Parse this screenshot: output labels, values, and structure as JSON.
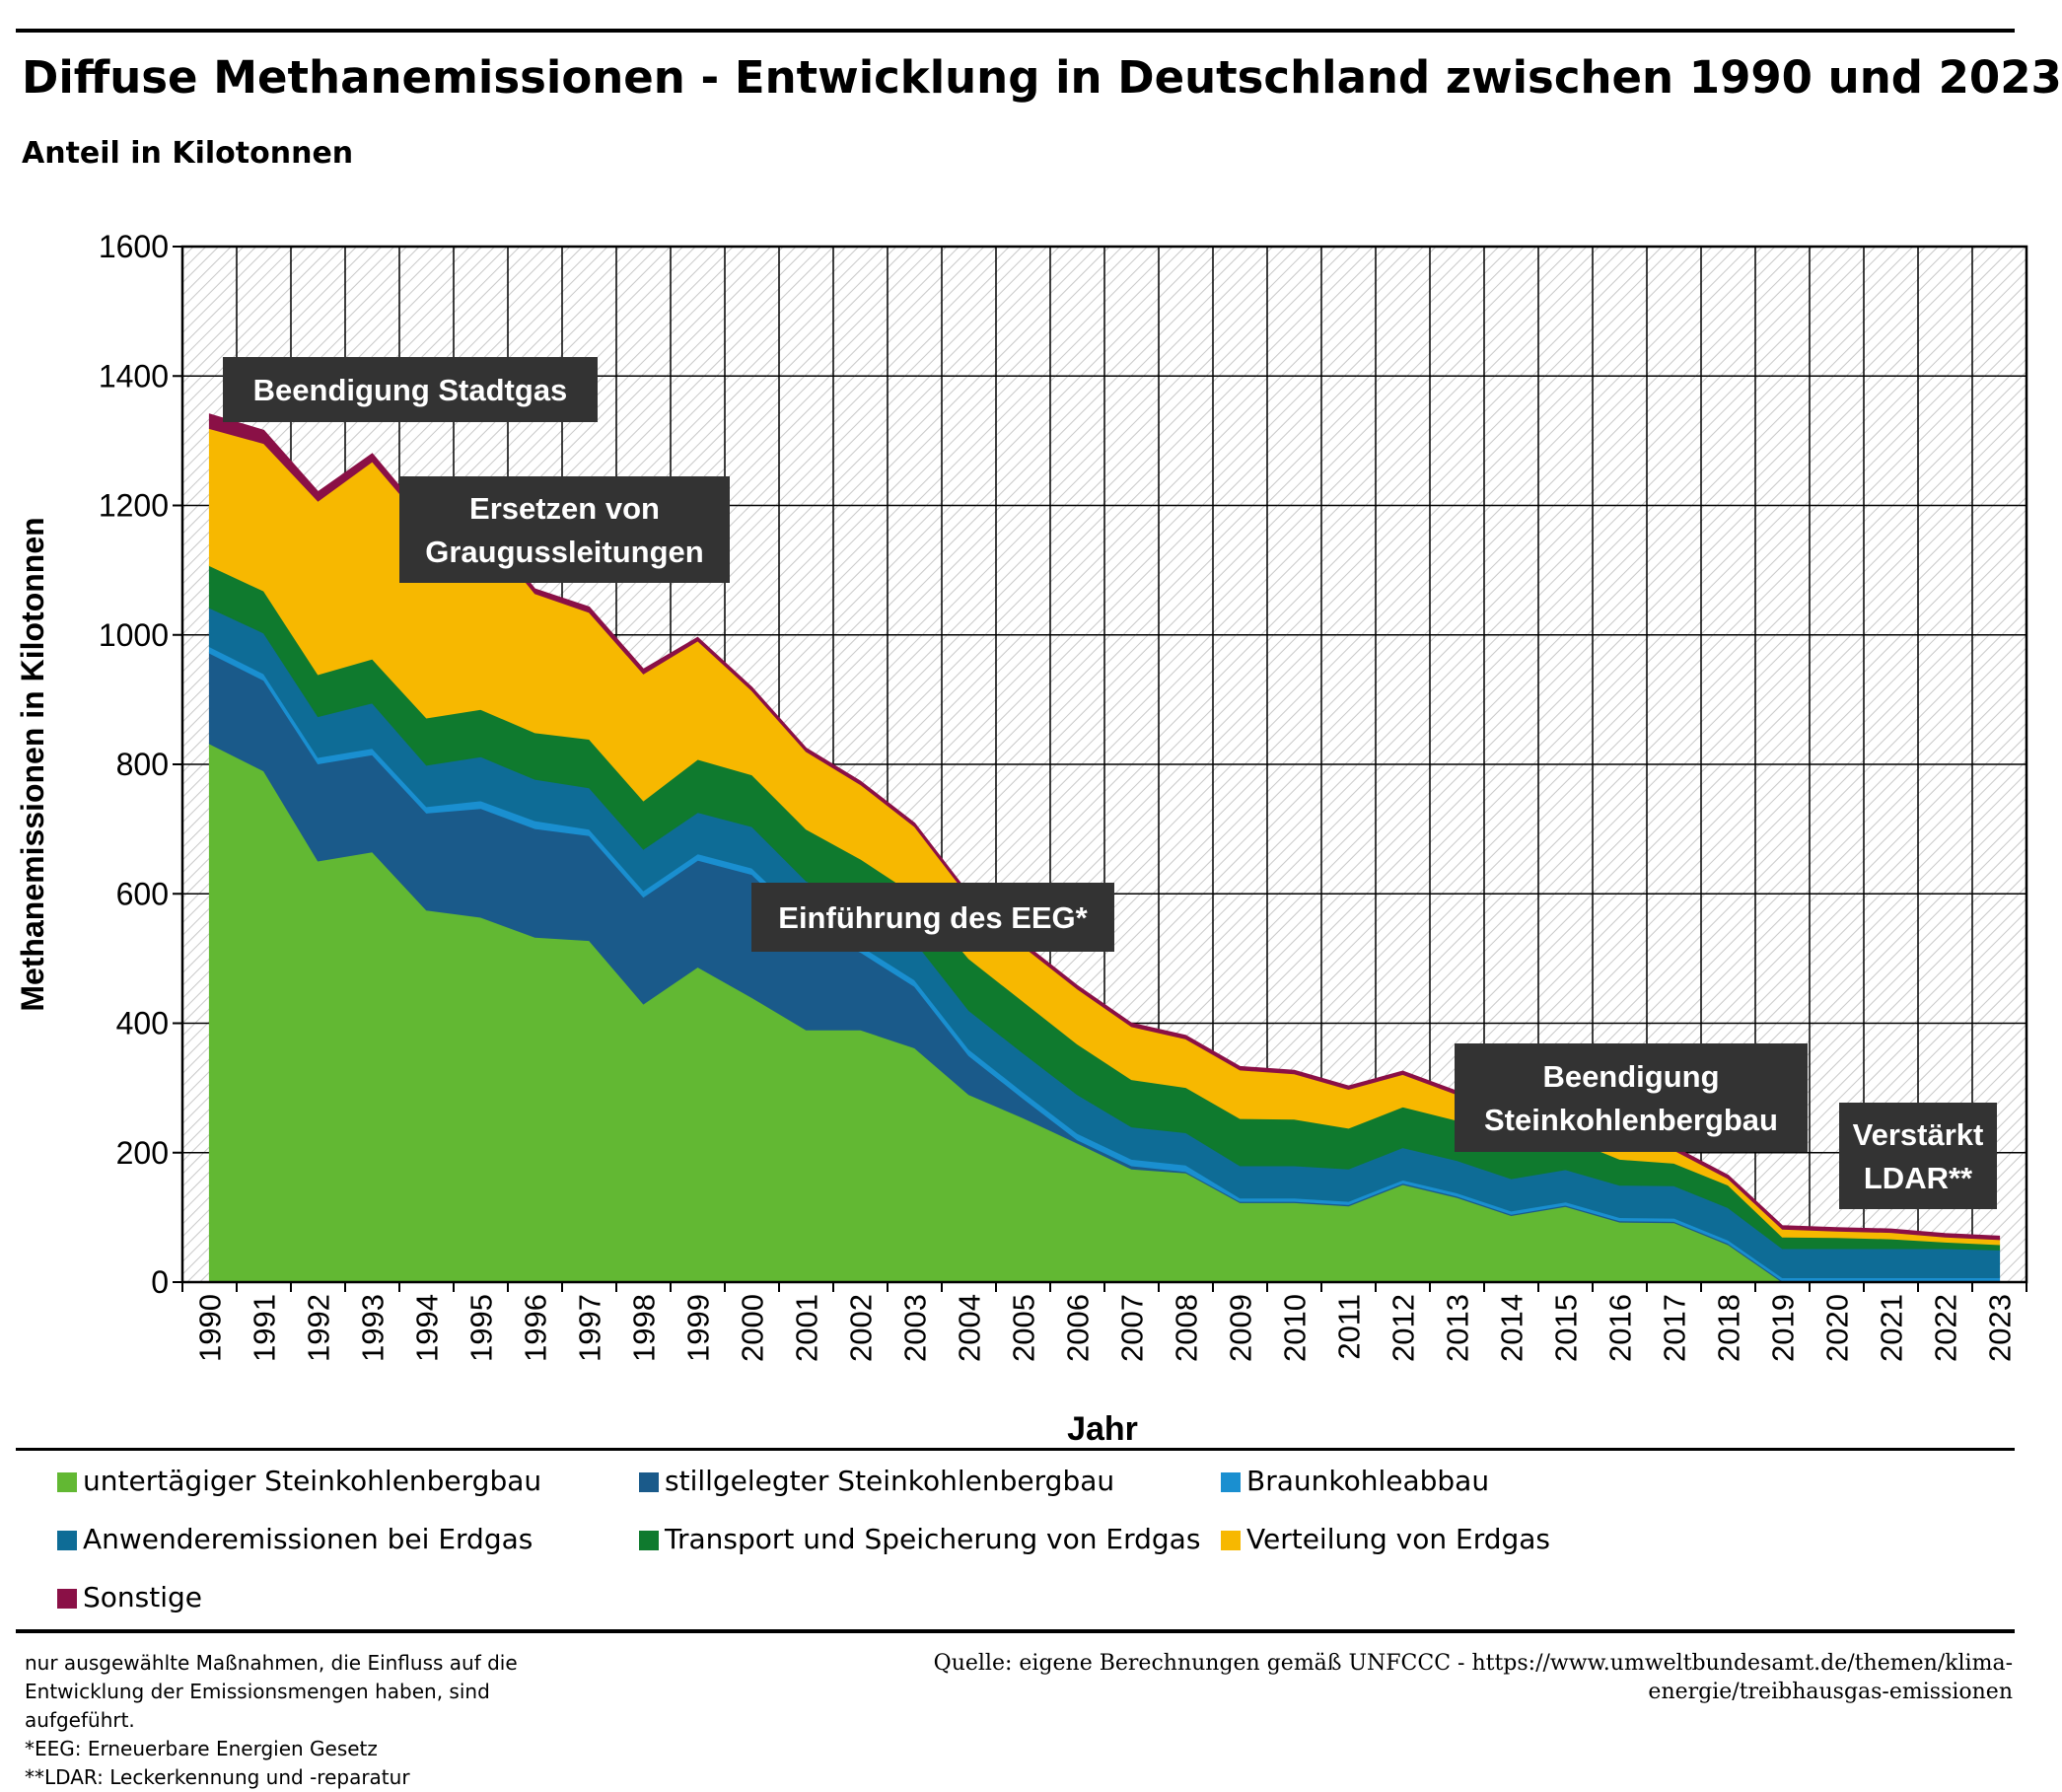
{
  "header": {
    "title": "Diffuse Methanemissionen - Entwicklung in Deutschland zwischen 1990 und 2023",
    "subtitle": "Anteil in Kilotonnen"
  },
  "chart_data": {
    "type": "area",
    "stacked": true,
    "title": "Diffuse Methanemissionen - Entwicklung in Deutschland zwischen 1990 und 2023",
    "subtitle": "Anteil in Kilotonnen",
    "xlabel": "Jahr",
    "ylabel": "Methanemissionen in Kilotonnen",
    "ylim": [
      0,
      1600
    ],
    "yticks": [
      0,
      200,
      400,
      600,
      800,
      1000,
      1200,
      1400,
      1600
    ],
    "grid": true,
    "legend_position": "bottom",
    "x": [
      "1990",
      "1991",
      "1992",
      "1993",
      "1994",
      "1995",
      "1996",
      "1997",
      "1998",
      "1999",
      "2000",
      "2001",
      "2002",
      "2003",
      "2004",
      "2005",
      "2006",
      "2007",
      "2008",
      "2009",
      "2010",
      "2011",
      "2012",
      "2013",
      "2014",
      "2015",
      "2016",
      "2017",
      "2018",
      "2019",
      "2020",
      "2021",
      "2022",
      "2023"
    ],
    "series": [
      {
        "name": "untertägiger Steinkohlenbergbau",
        "color": "#62b833",
        "values": [
          832,
          790,
          651,
          665,
          575,
          564,
          533,
          528,
          430,
          487,
          440,
          390,
          390,
          362,
          290,
          254,
          215,
          175,
          169,
          123,
          123,
          118,
          151,
          131,
          103,
          117,
          93,
          92,
          58,
          0,
          0,
          0,
          0,
          0
        ]
      },
      {
        "name": "stillgelegter Steinkohlenbergbau",
        "color": "#1a5a8a",
        "values": [
          140,
          140,
          150,
          150,
          150,
          168,
          168,
          162,
          165,
          165,
          190,
          160,
          120,
          95,
          60,
          30,
          5,
          5,
          2,
          2,
          2,
          2,
          2,
          2,
          2,
          2,
          2,
          2,
          2,
          2,
          2,
          2,
          2,
          2
        ]
      },
      {
        "name": "Braunkohleabbau",
        "color": "#1a8fd0",
        "values": [
          10,
          10,
          10,
          10,
          10,
          12,
          12,
          10,
          10,
          10,
          10,
          10,
          10,
          10,
          10,
          10,
          10,
          10,
          10,
          5,
          5,
          5,
          5,
          5,
          5,
          5,
          5,
          5,
          5,
          5,
          5,
          5,
          5,
          5
        ]
      },
      {
        "name": "Anwenderemissionen bei Erdgas",
        "color": "#0e6c96",
        "values": [
          60,
          63,
          63,
          70,
          64,
          68,
          64,
          64,
          64,
          64,
          64,
          60,
          60,
          60,
          60,
          60,
          60,
          50,
          50,
          50,
          50,
          50,
          50,
          50,
          50,
          50,
          50,
          50,
          50,
          45,
          45,
          45,
          45,
          43
        ]
      },
      {
        "name": "Transport und Speicherung von Erdgas",
        "color": "#0f7a2e",
        "values": [
          65,
          65,
          65,
          68,
          73,
          73,
          72,
          75,
          75,
          82,
          80,
          80,
          74,
          72,
          80,
          80,
          78,
          73,
          70,
          73,
          72,
          63,
          63,
          62,
          53,
          50,
          40,
          35,
          35,
          18,
          17,
          15,
          10,
          8
        ]
      },
      {
        "name": "Verteilung von Erdgas",
        "color": "#f7b800",
        "values": [
          212,
          228,
          268,
          305,
          298,
          282,
          215,
          196,
          196,
          183,
          130,
          120,
          115,
          105,
          95,
          85,
          85,
          82,
          75,
          75,
          70,
          60,
          50,
          40,
          30,
          15,
          15,
          20,
          10,
          12,
          10,
          10,
          8,
          8
        ]
      },
      {
        "name": "Sonstige",
        "color": "#8a1046",
        "values": [
          22,
          20,
          14,
          12,
          10,
          8,
          7,
          8,
          7,
          5,
          5,
          5,
          5,
          5,
          5,
          5,
          5,
          5,
          5,
          5,
          5,
          5,
          5,
          5,
          5,
          5,
          5,
          5,
          5,
          5,
          5,
          5,
          5,
          5
        ]
      }
    ],
    "annotations": [
      {
        "text": "Beendigung Stadtgas"
      },
      {
        "text": "Ersetzen von Graugussleitungen"
      },
      {
        "text": "Einführung des EEG*"
      },
      {
        "text": "Beendigung Steinkohlenbergbau"
      },
      {
        "text": "Verstärkt LDAR**"
      }
    ]
  },
  "legend": {
    "items": [
      {
        "label": "untertägiger Steinkohlenbergbau",
        "color": "#62b833"
      },
      {
        "label": "stillgelegter Steinkohlenbergbau",
        "color": "#1a5a8a"
      },
      {
        "label": "Braunkohleabbau",
        "color": "#1a8fd0"
      },
      {
        "label": "Anwenderemissionen bei Erdgas",
        "color": "#0e6c96"
      },
      {
        "label": "Transport und Speicherung von Erdgas",
        "color": "#0f7a2e"
      },
      {
        "label": "Verteilung von Erdgas",
        "color": "#f7b800"
      },
      {
        "label": "Sonstige",
        "color": "#8a1046"
      }
    ]
  },
  "footnotes": {
    "left": [
      "nur ausgewählte Maßnahmen, die Einfluss auf die",
      "Entwicklung der Emissionsmengen haben, sind",
      "aufgeführt.",
      "*EEG: Erneuerbare Energien Gesetz",
      "**LDAR: Leckerkennung und -reparatur"
    ],
    "source": [
      "Quelle: eigene Berechnungen gemäß UNFCCC - https://www.umweltbundesamt.de/themen/klima-",
      "energie/treibhausgas-emissionen"
    ]
  }
}
